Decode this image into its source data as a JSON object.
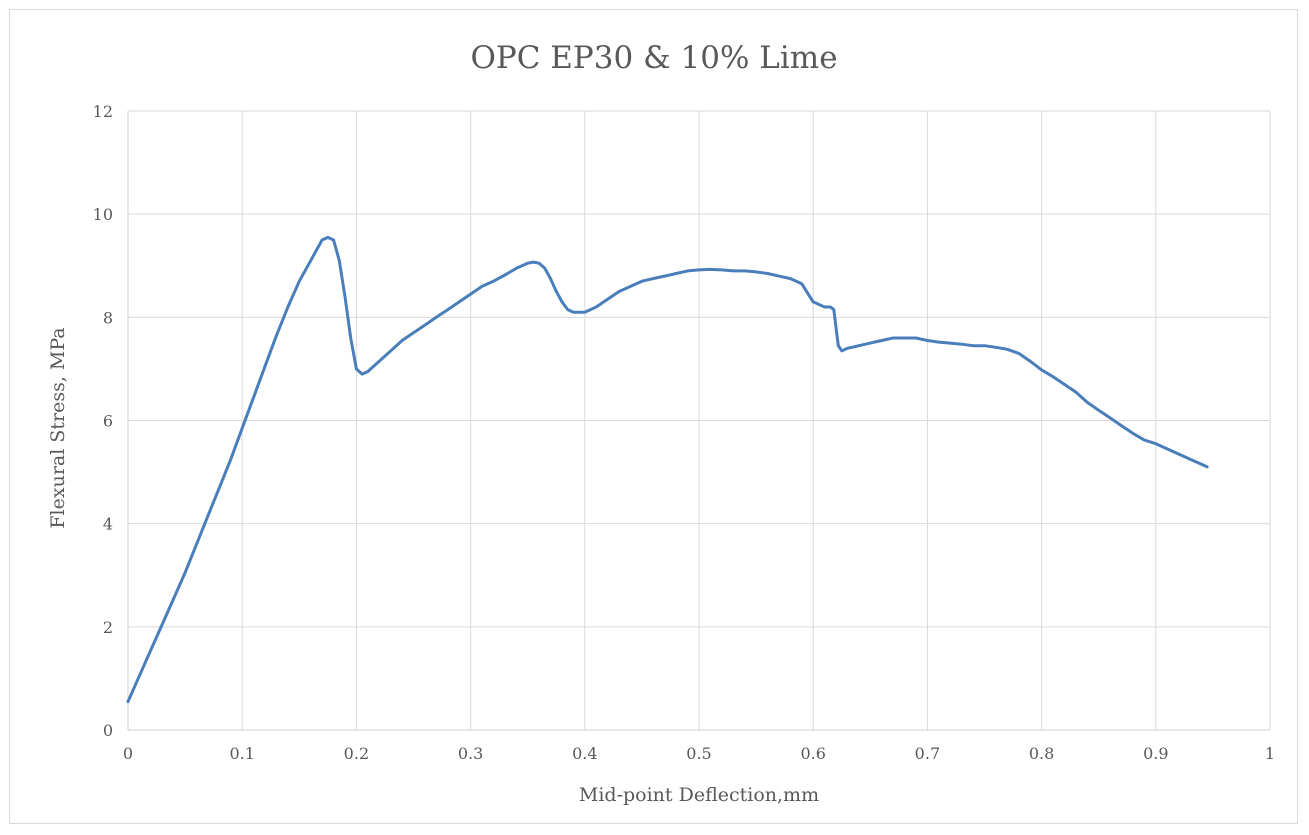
{
  "chart_data": {
    "type": "line",
    "title": "OPC EP30 & 10% Lime",
    "xlabel": "Mid-point Deflection,mm",
    "ylabel": "Flexural Stress, MPa",
    "xlim": [
      0,
      1
    ],
    "ylim": [
      0,
      12
    ],
    "x_ticks": [
      0,
      0.1,
      0.2,
      0.3,
      0.4,
      0.5,
      0.6,
      0.7,
      0.8,
      0.9,
      1
    ],
    "x_tick_labels": [
      "0",
      "0.1",
      "0.2",
      "0.3",
      "0.4",
      "0.5",
      "0.6",
      "0.7",
      "0.8",
      "0.9",
      "1"
    ],
    "y_ticks": [
      0,
      2,
      4,
      6,
      8,
      10,
      12
    ],
    "y_tick_labels": [
      "0",
      "2",
      "4",
      "6",
      "8",
      "10",
      "12"
    ],
    "grid": true,
    "legend": "none",
    "colors": {
      "series": "#4a7ebb",
      "grid": "#d9d9d9",
      "text": "#595959"
    },
    "series": [
      {
        "x": [
          0,
          0.01,
          0.02,
          0.03,
          0.04,
          0.05,
          0.06,
          0.07,
          0.08,
          0.09,
          0.1,
          0.11,
          0.12,
          0.13,
          0.14,
          0.15,
          0.16,
          0.17,
          0.175,
          0.18,
          0.185,
          0.19,
          0.195,
          0.2,
          0.205,
          0.21,
          0.22,
          0.23,
          0.24,
          0.25,
          0.26,
          0.27,
          0.28,
          0.29,
          0.3,
          0.31,
          0.32,
          0.33,
          0.34,
          0.35,
          0.355,
          0.36,
          0.365,
          0.37,
          0.375,
          0.38,
          0.385,
          0.39,
          0.4,
          0.41,
          0.42,
          0.43,
          0.44,
          0.45,
          0.46,
          0.47,
          0.48,
          0.49,
          0.5,
          0.51,
          0.52,
          0.53,
          0.54,
          0.55,
          0.56,
          0.57,
          0.58,
          0.59,
          0.6,
          0.61,
          0.615,
          0.618,
          0.62,
          0.622,
          0.625,
          0.63,
          0.64,
          0.65,
          0.66,
          0.67,
          0.68,
          0.69,
          0.7,
          0.71,
          0.72,
          0.73,
          0.74,
          0.75,
          0.76,
          0.77,
          0.78,
          0.79,
          0.8,
          0.81,
          0.82,
          0.83,
          0.84,
          0.85,
          0.86,
          0.87,
          0.88,
          0.89,
          0.9,
          0.91,
          0.92,
          0.93,
          0.94,
          0.945
        ],
        "y": [
          0.55,
          1.05,
          1.55,
          2.05,
          2.55,
          3.05,
          3.6,
          4.15,
          4.7,
          5.25,
          5.85,
          6.45,
          7.05,
          7.65,
          8.2,
          8.7,
          9.1,
          9.5,
          9.55,
          9.5,
          9.1,
          8.4,
          7.6,
          7.0,
          6.9,
          6.95,
          7.15,
          7.35,
          7.55,
          7.7,
          7.85,
          8.0,
          8.15,
          8.3,
          8.45,
          8.6,
          8.7,
          8.82,
          8.95,
          9.05,
          9.07,
          9.05,
          8.95,
          8.75,
          8.5,
          8.3,
          8.15,
          8.1,
          8.1,
          8.2,
          8.35,
          8.5,
          8.6,
          8.7,
          8.75,
          8.8,
          8.85,
          8.9,
          8.92,
          8.93,
          8.92,
          8.9,
          8.9,
          8.88,
          8.85,
          8.8,
          8.75,
          8.65,
          8.3,
          8.2,
          8.2,
          8.15,
          7.8,
          7.45,
          7.35,
          7.4,
          7.45,
          7.5,
          7.55,
          7.6,
          7.6,
          7.6,
          7.55,
          7.52,
          7.5,
          7.48,
          7.45,
          7.45,
          7.42,
          7.38,
          7.3,
          7.15,
          6.98,
          6.85,
          6.7,
          6.55,
          6.35,
          6.2,
          6.05,
          5.9,
          5.75,
          5.62,
          5.55,
          5.45,
          5.35,
          5.25,
          5.15,
          5.1
        ]
      }
    ]
  }
}
